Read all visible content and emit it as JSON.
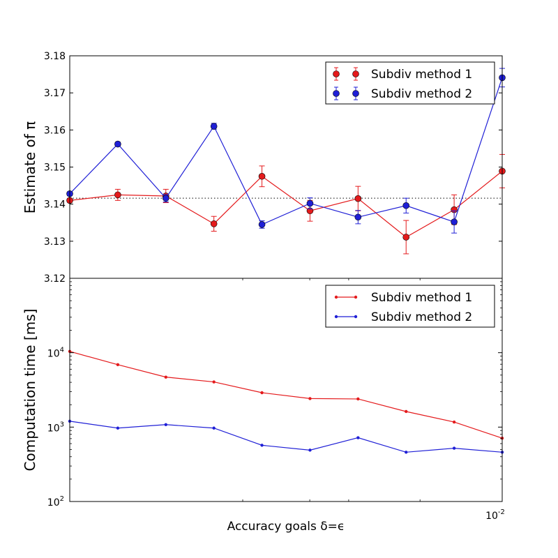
{
  "chart_data": [
    {
      "type": "line",
      "panel": "top",
      "title": "",
      "xlabel": "",
      "ylabel": "Estimate of π",
      "ylim": [
        3.12,
        3.18
      ],
      "yticks": [
        "3.12",
        "3.13",
        "3.14",
        "3.15",
        "3.16",
        "3.17",
        "3.18"
      ],
      "reference_line": 3.1416,
      "grid": false,
      "legend_position": "top-right",
      "series": [
        {
          "name": "Subdiv method 1",
          "color": "#e41a1c",
          "marker": "circle",
          "values": [
            3.141,
            3.1425,
            3.1422,
            3.1347,
            3.1475,
            3.1382,
            3.1415,
            3.1311,
            3.1385,
            3.1489
          ],
          "errors": [
            0.0005,
            0.0015,
            0.0018,
            0.002,
            0.0028,
            0.0028,
            0.0033,
            0.0045,
            0.004,
            0.0045
          ]
        },
        {
          "name": "Subdiv method 2",
          "color": "#1f1fd6",
          "marker": "circle",
          "values": [
            3.1428,
            3.1562,
            3.1416,
            3.161,
            3.1345,
            3.1402,
            3.1365,
            3.1396,
            3.1352,
            3.1741
          ],
          "errors": [
            0.0005,
            0.0005,
            0.001,
            0.0008,
            0.001,
            0.0015,
            0.0018,
            0.002,
            0.003,
            0.0025
          ]
        }
      ]
    },
    {
      "type": "line",
      "panel": "bottom",
      "title": "",
      "xlabel": "Accuracy goals δ=ϵ",
      "ylabel": "Computation time [ms]",
      "yscale": "log",
      "ylim": [
        100,
        100000
      ],
      "yticks": [
        {
          "value": 100,
          "base": "10",
          "exp": "2"
        },
        {
          "value": 1000,
          "base": "10",
          "exp": "3"
        },
        {
          "value": 10000,
          "base": "10",
          "exp": "4"
        }
      ],
      "xtick": {
        "base": "10",
        "exp": "-2"
      },
      "grid": false,
      "legend_position": "top-right",
      "series": [
        {
          "name": "Subdiv method 1",
          "color": "#e41a1c",
          "marker": "dot",
          "values": [
            10400,
            6900,
            4700,
            4050,
            2900,
            2420,
            2390,
            1620,
            1170,
            710
          ]
        },
        {
          "name": "Subdiv method 2",
          "color": "#1f1fd6",
          "marker": "dot",
          "values": [
            1200,
            970,
            1080,
            970,
            570,
            490,
            720,
            460,
            520,
            460
          ]
        }
      ]
    }
  ]
}
